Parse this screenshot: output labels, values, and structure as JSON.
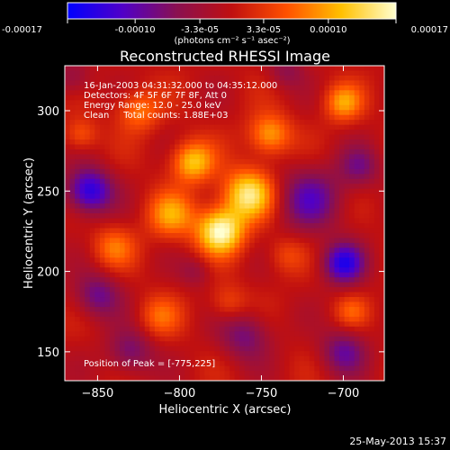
{
  "colorbar": {
    "ticks": [
      "-0.00017",
      "-0.00010",
      "-3.3e-05",
      "3.3e-05",
      "0.00010",
      "0.00017"
    ],
    "tick_values": [
      -0.00017,
      -0.0001,
      -3.3e-05,
      3.3e-05,
      0.0001,
      0.00017
    ],
    "units": "(photons cm⁻² s⁻¹ asec⁻²)",
    "colors": [
      "#0000ff",
      "#5000c8",
      "#8a1050",
      "#c01010",
      "#ff5000",
      "#ffc000",
      "#ffffd0"
    ]
  },
  "chart_data": {
    "type": "heatmap",
    "title": "Reconstructed RHESSI Image",
    "xlabel": "Heliocentric X (arcsec)",
    "ylabel": "Heliocentric Y (arcsec)",
    "xlim": [
      -870,
      -675
    ],
    "ylim": [
      132,
      328
    ],
    "xticks": [
      -850,
      -800,
      -750,
      -700
    ],
    "yticks": [
      150,
      200,
      250,
      300
    ],
    "xtick_labels": [
      "−850",
      "−800",
      "−750",
      "−700"
    ],
    "ytick_labels": [
      "150",
      "200",
      "250",
      "300"
    ],
    "value_range": [
      -0.00017,
      0.00017
    ],
    "peak": {
      "x": -775,
      "y": 225
    },
    "blobs": [
      {
        "x": -775,
        "y": 225,
        "v": 1.0,
        "s": 10
      },
      {
        "x": -758,
        "y": 248,
        "v": 0.85,
        "s": 11
      },
      {
        "x": -792,
        "y": 268,
        "v": 0.7,
        "s": 9
      },
      {
        "x": -805,
        "y": 235,
        "v": 0.55,
        "s": 10
      },
      {
        "x": -745,
        "y": 285,
        "v": 0.6,
        "s": 9
      },
      {
        "x": -825,
        "y": 300,
        "v": 0.45,
        "s": 9
      },
      {
        "x": -840,
        "y": 215,
        "v": 0.4,
        "s": 9
      },
      {
        "x": -700,
        "y": 305,
        "v": 0.55,
        "s": 8
      },
      {
        "x": -812,
        "y": 172,
        "v": 0.35,
        "s": 9
      },
      {
        "x": -770,
        "y": 180,
        "v": 0.3,
        "s": 8
      },
      {
        "x": -735,
        "y": 210,
        "v": 0.25,
        "s": 8
      },
      {
        "x": -695,
        "y": 175,
        "v": 0.3,
        "s": 7
      },
      {
        "x": -860,
        "y": 285,
        "v": 0.35,
        "s": 7
      },
      {
        "x": -855,
        "y": 250,
        "v": -0.85,
        "s": 10
      },
      {
        "x": -700,
        "y": 205,
        "v": -0.8,
        "s": 9
      },
      {
        "x": -850,
        "y": 185,
        "v": -0.5,
        "s": 10
      },
      {
        "x": -720,
        "y": 245,
        "v": -0.55,
        "s": 14
      },
      {
        "x": -760,
        "y": 160,
        "v": -0.45,
        "s": 11
      },
      {
        "x": -700,
        "y": 150,
        "v": -0.5,
        "s": 10
      },
      {
        "x": -830,
        "y": 150,
        "v": -0.45,
        "s": 10
      },
      {
        "x": -690,
        "y": 265,
        "v": -0.4,
        "s": 9
      },
      {
        "x": -865,
        "y": 320,
        "v": -0.3,
        "s": 8
      },
      {
        "x": -790,
        "y": 200,
        "v": -0.25,
        "s": 7
      },
      {
        "x": -735,
        "y": 325,
        "v": -0.3,
        "s": 8
      }
    ]
  },
  "annotation": {
    "time": "16-Jan-2003 04:31:32.000 to 04:35:12.000",
    "detectors": "Detectors: 4F 5F 6F 7F 8F, Att 0",
    "energy": "Energy Range: 12.0 - 25.0 keV",
    "clean": "Clean     Total counts: 1.88E+03",
    "peak": "Position of Peak = [-775,225]"
  },
  "footer": {
    "date": "25-May-2013 15:37"
  }
}
